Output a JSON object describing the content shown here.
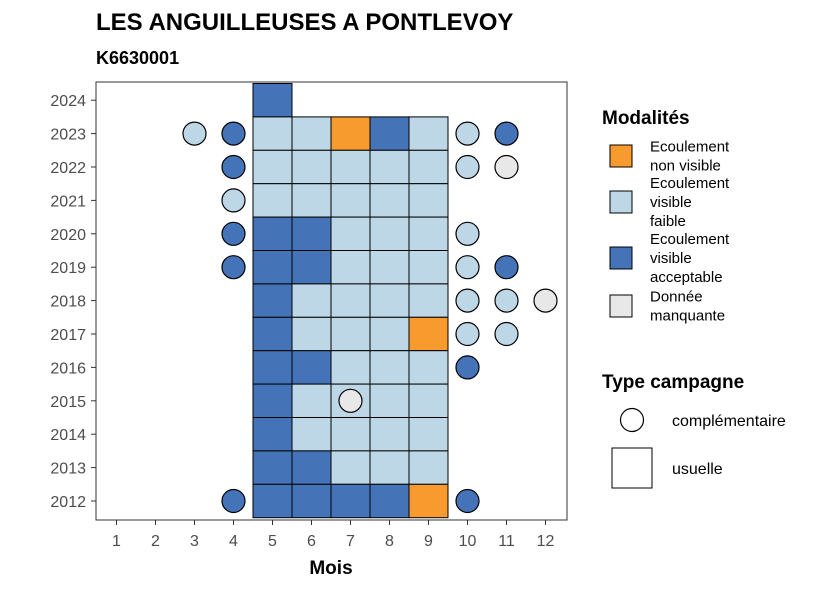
{
  "chart_data": {
    "type": "heatmap",
    "title": "LES ANGUILLEUSES A PONTLEVOY",
    "subtitle": "K6630001",
    "xlabel": "Mois",
    "ylabel": "",
    "x_ticks": [
      "1",
      "2",
      "3",
      "4",
      "5",
      "6",
      "7",
      "8",
      "9",
      "10",
      "11",
      "12"
    ],
    "y_ticks": [
      "2012",
      "2013",
      "2014",
      "2015",
      "2016",
      "2017",
      "2018",
      "2019",
      "2020",
      "2021",
      "2022",
      "2023",
      "2024"
    ],
    "xlim": [
      1,
      12
    ],
    "ylim": [
      2012,
      2024
    ],
    "grid": false,
    "legend_position": "right",
    "colors": {
      "non_visible": "#F89B2E",
      "faible": "#BDD7E7",
      "acceptable": "#4473B8",
      "manquante": "#E8E8E8"
    },
    "legend": {
      "modalites_title": "Modalités",
      "modalites": [
        {
          "key": "non_visible",
          "lines": [
            "Ecoulement",
            "non visible"
          ]
        },
        {
          "key": "faible",
          "lines": [
            "Ecoulement",
            "visible",
            "faible"
          ]
        },
        {
          "key": "acceptable",
          "lines": [
            "Ecoulement",
            "visible",
            "acceptable"
          ]
        },
        {
          "key": "manquante",
          "lines": [
            "Donnée",
            "manquante"
          ]
        }
      ],
      "type_title": "Type campagne",
      "types": [
        {
          "key": "complementaire",
          "label": "complémentaire"
        },
        {
          "key": "usuelle",
          "label": "usuelle"
        }
      ]
    },
    "observations": [
      {
        "year": 2024,
        "month": 5,
        "type": "usuelle",
        "value": "acceptable"
      },
      {
        "year": 2023,
        "month": 3,
        "type": "complementaire",
        "value": "faible"
      },
      {
        "year": 2023,
        "month": 4,
        "type": "complementaire",
        "value": "acceptable"
      },
      {
        "year": 2023,
        "month": 5,
        "type": "usuelle",
        "value": "faible"
      },
      {
        "year": 2023,
        "month": 6,
        "type": "usuelle",
        "value": "faible"
      },
      {
        "year": 2023,
        "month": 7,
        "type": "usuelle",
        "value": "non_visible"
      },
      {
        "year": 2023,
        "month": 8,
        "type": "usuelle",
        "value": "acceptable"
      },
      {
        "year": 2023,
        "month": 9,
        "type": "usuelle",
        "value": "faible"
      },
      {
        "year": 2023,
        "month": 10,
        "type": "complementaire",
        "value": "faible"
      },
      {
        "year": 2023,
        "month": 11,
        "type": "complementaire",
        "value": "acceptable"
      },
      {
        "year": 2022,
        "month": 4,
        "type": "complementaire",
        "value": "acceptable"
      },
      {
        "year": 2022,
        "month": 5,
        "type": "usuelle",
        "value": "faible"
      },
      {
        "year": 2022,
        "month": 6,
        "type": "usuelle",
        "value": "faible"
      },
      {
        "year": 2022,
        "month": 7,
        "type": "usuelle",
        "value": "faible"
      },
      {
        "year": 2022,
        "month": 8,
        "type": "usuelle",
        "value": "faible"
      },
      {
        "year": 2022,
        "month": 9,
        "type": "usuelle",
        "value": "faible"
      },
      {
        "year": 2022,
        "month": 10,
        "type": "complementaire",
        "value": "faible"
      },
      {
        "year": 2022,
        "month": 11,
        "type": "complementaire",
        "value": "manquante"
      },
      {
        "year": 2021,
        "month": 4,
        "type": "complementaire",
        "value": "faible"
      },
      {
        "year": 2021,
        "month": 5,
        "type": "usuelle",
        "value": "faible"
      },
      {
        "year": 2021,
        "month": 6,
        "type": "usuelle",
        "value": "faible"
      },
      {
        "year": 2021,
        "month": 7,
        "type": "usuelle",
        "value": "faible"
      },
      {
        "year": 2021,
        "month": 8,
        "type": "usuelle",
        "value": "faible"
      },
      {
        "year": 2021,
        "month": 9,
        "type": "usuelle",
        "value": "faible"
      },
      {
        "year": 2020,
        "month": 4,
        "type": "complementaire",
        "value": "acceptable"
      },
      {
        "year": 2020,
        "month": 5,
        "type": "usuelle",
        "value": "acceptable"
      },
      {
        "year": 2020,
        "month": 6,
        "type": "usuelle",
        "value": "acceptable"
      },
      {
        "year": 2020,
        "month": 7,
        "type": "usuelle",
        "value": "faible"
      },
      {
        "year": 2020,
        "month": 8,
        "type": "usuelle",
        "value": "faible"
      },
      {
        "year": 2020,
        "month": 9,
        "type": "usuelle",
        "value": "faible"
      },
      {
        "year": 2020,
        "month": 10,
        "type": "complementaire",
        "value": "faible"
      },
      {
        "year": 2019,
        "month": 4,
        "type": "complementaire",
        "value": "acceptable"
      },
      {
        "year": 2019,
        "month": 5,
        "type": "usuelle",
        "value": "acceptable"
      },
      {
        "year": 2019,
        "month": 6,
        "type": "usuelle",
        "value": "acceptable"
      },
      {
        "year": 2019,
        "month": 7,
        "type": "usuelle",
        "value": "faible"
      },
      {
        "year": 2019,
        "month": 8,
        "type": "usuelle",
        "value": "faible"
      },
      {
        "year": 2019,
        "month": 9,
        "type": "usuelle",
        "value": "faible"
      },
      {
        "year": 2019,
        "month": 10,
        "type": "complementaire",
        "value": "faible"
      },
      {
        "year": 2019,
        "month": 11,
        "type": "complementaire",
        "value": "acceptable"
      },
      {
        "year": 2018,
        "month": 5,
        "type": "usuelle",
        "value": "acceptable"
      },
      {
        "year": 2018,
        "month": 6,
        "type": "usuelle",
        "value": "faible"
      },
      {
        "year": 2018,
        "month": 7,
        "type": "usuelle",
        "value": "faible"
      },
      {
        "year": 2018,
        "month": 8,
        "type": "usuelle",
        "value": "faible"
      },
      {
        "year": 2018,
        "month": 9,
        "type": "usuelle",
        "value": "faible"
      },
      {
        "year": 2018,
        "month": 10,
        "type": "complementaire",
        "value": "faible"
      },
      {
        "year": 2018,
        "month": 11,
        "type": "complementaire",
        "value": "faible"
      },
      {
        "year": 2018,
        "month": 12,
        "type": "complementaire",
        "value": "manquante"
      },
      {
        "year": 2017,
        "month": 5,
        "type": "usuelle",
        "value": "acceptable"
      },
      {
        "year": 2017,
        "month": 6,
        "type": "usuelle",
        "value": "faible"
      },
      {
        "year": 2017,
        "month": 7,
        "type": "usuelle",
        "value": "faible"
      },
      {
        "year": 2017,
        "month": 8,
        "type": "usuelle",
        "value": "faible"
      },
      {
        "year": 2017,
        "month": 9,
        "type": "usuelle",
        "value": "non_visible"
      },
      {
        "year": 2017,
        "month": 10,
        "type": "complementaire",
        "value": "faible"
      },
      {
        "year": 2017,
        "month": 11,
        "type": "complementaire",
        "value": "faible"
      },
      {
        "year": 2016,
        "month": 5,
        "type": "usuelle",
        "value": "acceptable"
      },
      {
        "year": 2016,
        "month": 6,
        "type": "usuelle",
        "value": "acceptable"
      },
      {
        "year": 2016,
        "month": 7,
        "type": "usuelle",
        "value": "faible"
      },
      {
        "year": 2016,
        "month": 8,
        "type": "usuelle",
        "value": "faible"
      },
      {
        "year": 2016,
        "month": 9,
        "type": "usuelle",
        "value": "faible"
      },
      {
        "year": 2016,
        "month": 10,
        "type": "complementaire",
        "value": "acceptable"
      },
      {
        "year": 2015,
        "month": 5,
        "type": "usuelle",
        "value": "acceptable"
      },
      {
        "year": 2015,
        "month": 6,
        "type": "usuelle",
        "value": "faible"
      },
      {
        "year": 2015,
        "month": 7,
        "type": "usuelle",
        "value": "faible"
      },
      {
        "year": 2015,
        "month": 7,
        "type": "complementaire",
        "value": "manquante"
      },
      {
        "year": 2015,
        "month": 8,
        "type": "usuelle",
        "value": "faible"
      },
      {
        "year": 2015,
        "month": 9,
        "type": "usuelle",
        "value": "faible"
      },
      {
        "year": 2014,
        "month": 5,
        "type": "usuelle",
        "value": "acceptable"
      },
      {
        "year": 2014,
        "month": 6,
        "type": "usuelle",
        "value": "faible"
      },
      {
        "year": 2014,
        "month": 7,
        "type": "usuelle",
        "value": "faible"
      },
      {
        "year": 2014,
        "month": 8,
        "type": "usuelle",
        "value": "faible"
      },
      {
        "year": 2014,
        "month": 9,
        "type": "usuelle",
        "value": "faible"
      },
      {
        "year": 2013,
        "month": 5,
        "type": "usuelle",
        "value": "acceptable"
      },
      {
        "year": 2013,
        "month": 6,
        "type": "usuelle",
        "value": "acceptable"
      },
      {
        "year": 2013,
        "month": 7,
        "type": "usuelle",
        "value": "faible"
      },
      {
        "year": 2013,
        "month": 8,
        "type": "usuelle",
        "value": "faible"
      },
      {
        "year": 2013,
        "month": 9,
        "type": "usuelle",
        "value": "faible"
      },
      {
        "year": 2012,
        "month": 4,
        "type": "complementaire",
        "value": "acceptable"
      },
      {
        "year": 2012,
        "month": 5,
        "type": "usuelle",
        "value": "acceptable"
      },
      {
        "year": 2012,
        "month": 6,
        "type": "usuelle",
        "value": "acceptable"
      },
      {
        "year": 2012,
        "month": 7,
        "type": "usuelle",
        "value": "acceptable"
      },
      {
        "year": 2012,
        "month": 8,
        "type": "usuelle",
        "value": "acceptable"
      },
      {
        "year": 2012,
        "month": 9,
        "type": "usuelle",
        "value": "non_visible"
      },
      {
        "year": 2012,
        "month": 10,
        "type": "complementaire",
        "value": "acceptable"
      }
    ]
  }
}
